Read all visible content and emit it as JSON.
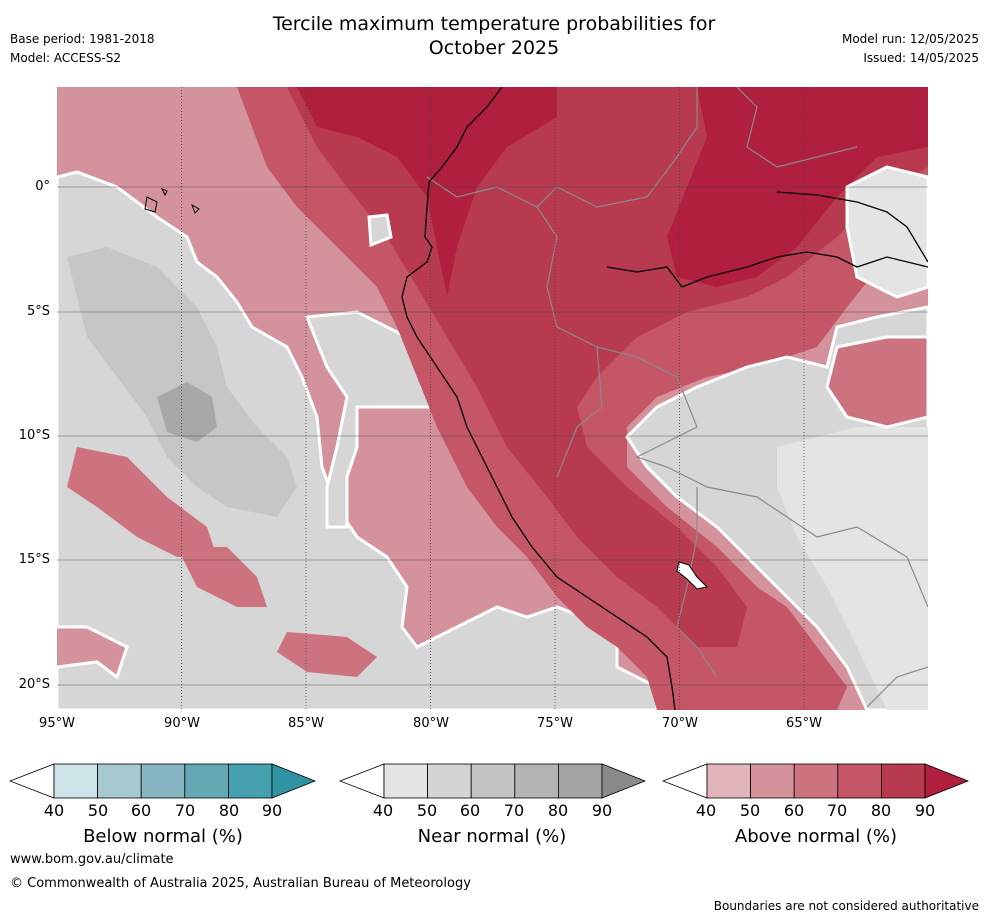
{
  "header": {
    "title_line1": "Tercile maximum temperature probabilities for",
    "title_line2": "October 2025",
    "base_period": "Base period: 1981-2018",
    "model": "Model: ACCESS-S2",
    "model_run": "Model run: 12/05/2025",
    "issued": "Issued: 14/05/2025"
  },
  "map": {
    "lon_ticks": [
      "95°W",
      "90°W",
      "85°W",
      "80°W",
      "75°W",
      "70°W",
      "65°W"
    ],
    "lat_ticks": [
      "0°",
      "5°S",
      "10°S",
      "15°S",
      "20°S"
    ]
  },
  "legends": {
    "below": {
      "label": "Below normal (%)",
      "ticks": [
        "40",
        "50",
        "60",
        "70",
        "80",
        "90"
      ],
      "colors": [
        "#ffffff",
        "#cce3e8",
        "#a6c9cf",
        "#86b6c1",
        "#64a8b4",
        "#46a0b0",
        "#2f93a3"
      ]
    },
    "near": {
      "label": "Near normal (%)",
      "ticks": [
        "40",
        "50",
        "60",
        "70",
        "80",
        "90"
      ],
      "colors": [
        "#ffffff",
        "#e4e4e4",
        "#d4d4d4",
        "#c4c4c4",
        "#b4b4b4",
        "#a4a4a4",
        "#8a8a8a"
      ]
    },
    "above": {
      "label": "Above normal (%)",
      "ticks": [
        "40",
        "50",
        "60",
        "70",
        "80",
        "90"
      ],
      "colors": [
        "#ffffff",
        "#e0b4ba",
        "#d4939c",
        "#cc737f",
        "#c45666",
        "#b83a4e",
        "#b01f3d"
      ]
    }
  },
  "footer": {
    "website": "www.bom.gov.au/climate",
    "copyright": "© Commonwealth of Australia 2025, Australian Bureau of Meteorology",
    "disclaimer": "Boundaries are not considered authoritative"
  }
}
